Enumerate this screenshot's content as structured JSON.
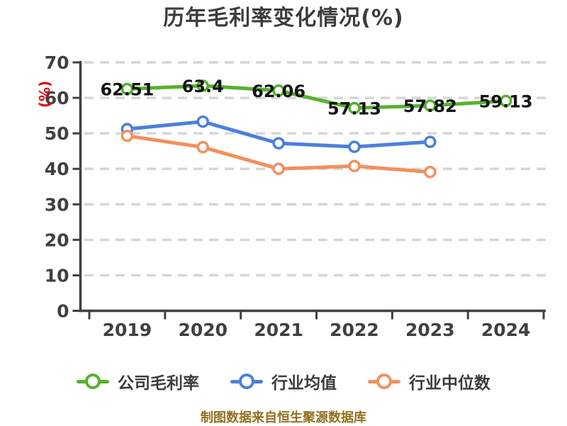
{
  "page": {
    "background": "#ffffff"
  },
  "header": {
    "title": "历年毛利率变化情况(%)"
  },
  "footer": {
    "source_note": "制图数据来自恒生聚源数据库",
    "color": "#92701d"
  },
  "colors": {
    "axis": "#404040",
    "grid": "#d6d6d6",
    "tick_label": "#404040",
    "data_label": "#141414",
    "y_unit_label": "#dc0a0a",
    "legend_label": "#3c3c3c"
  },
  "chart_data": {
    "type": "line",
    "title": "历年毛利率变化情况(%)",
    "ylabel": "(%)",
    "categories": [
      "2019",
      "2020",
      "2021",
      "2022",
      "2023",
      "2024"
    ],
    "series": [
      {
        "id": "company-gross-margin",
        "name": "公司毛利率",
        "color": "#55b22d",
        "values": [
          62.51,
          63.4,
          62.06,
          57.13,
          57.82,
          59.13
        ],
        "labels_shown": true
      },
      {
        "id": "industry-average",
        "name": "行业均值",
        "color": "#4b80dc",
        "values": [
          51.2,
          53.3,
          47.2,
          46.2,
          47.6,
          null
        ],
        "labels_shown": false
      },
      {
        "id": "industry-median",
        "name": "行业中位数",
        "color": "#f2905c",
        "values": [
          49.3,
          46.1,
          40.0,
          40.8,
          39.1,
          null
        ],
        "labels_shown": false
      }
    ],
    "ylim": [
      0,
      70
    ],
    "ytick_step": 10,
    "grid": "horizontal-dashed",
    "legend_position": "bottom"
  }
}
